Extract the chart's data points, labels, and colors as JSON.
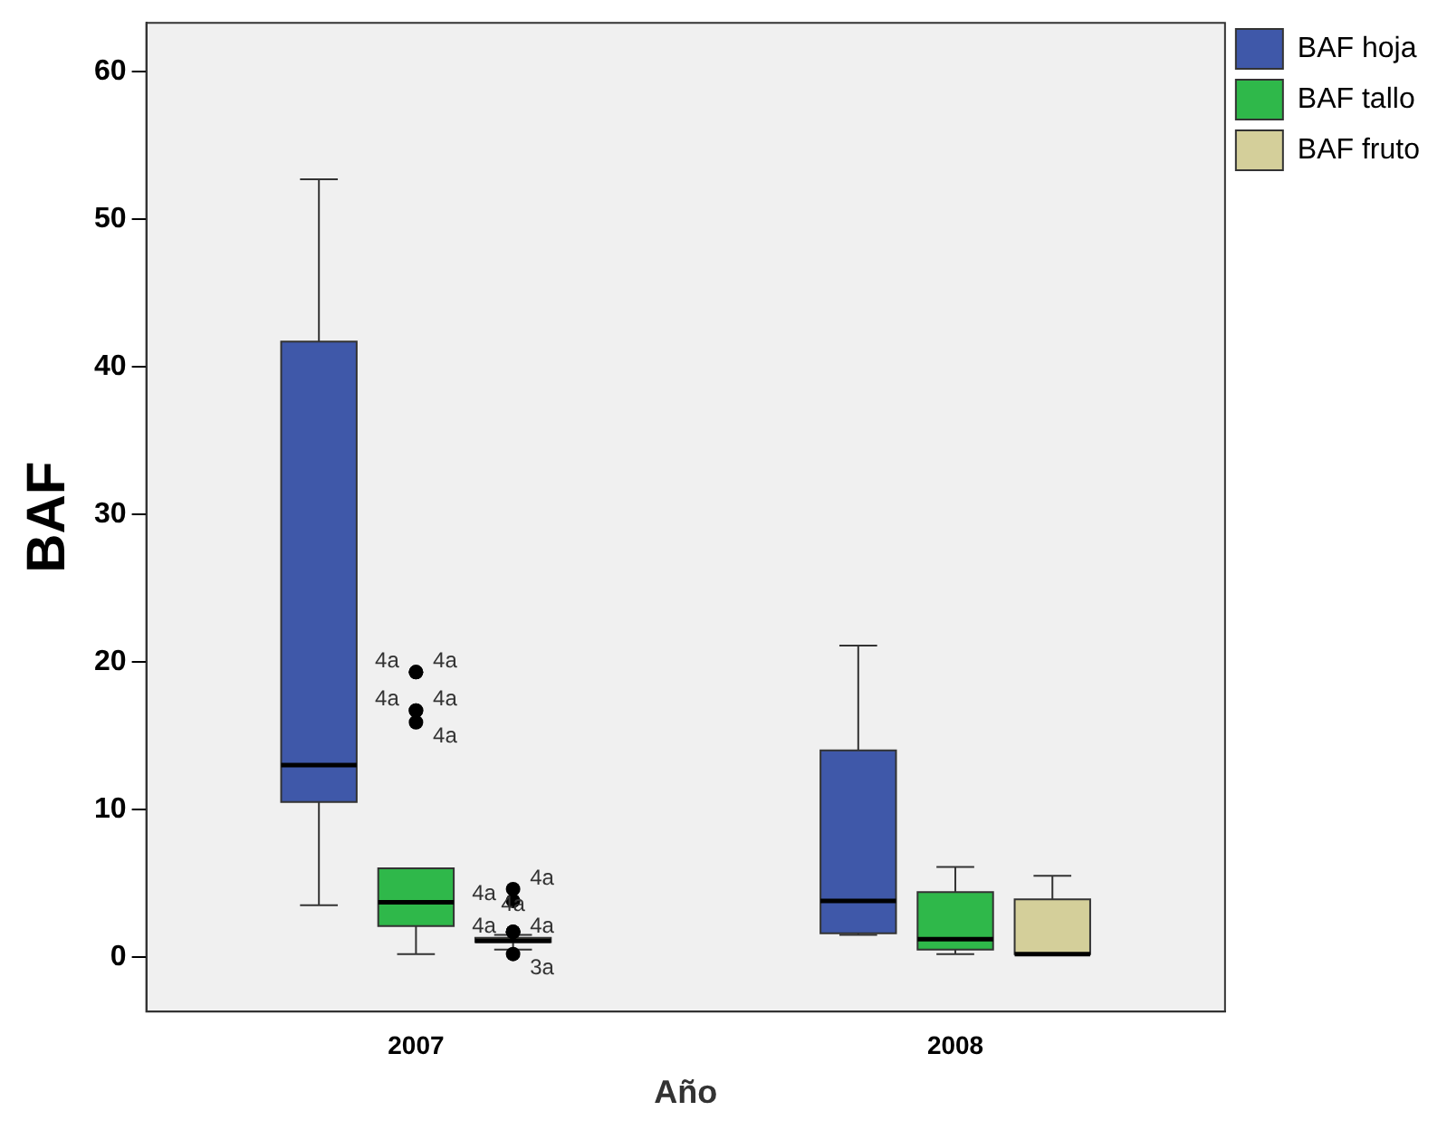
{
  "chart_data": {
    "type": "box",
    "xlabel": "Año",
    "ylabel": "BAF",
    "categories": [
      "2007",
      "2008"
    ],
    "ylim": [
      -3.7,
      63.3
    ],
    "yticks": [
      0,
      10,
      20,
      30,
      40,
      50,
      60
    ],
    "grid": false,
    "legend": "top right",
    "series": [
      {
        "name": "BAF hoja",
        "color": "#3f58a9",
        "boxes": [
          {
            "low": 3.5,
            "q1": 10.5,
            "median": 13.0,
            "q3": 41.7,
            "high": 52.7
          },
          {
            "low": 1.5,
            "q1": 1.6,
            "median": 3.8,
            "q3": 14.0,
            "high": 21.1
          }
        ]
      },
      {
        "name": "BAF tallo",
        "color": "#2fb84a",
        "boxes": [
          {
            "low": 0.2,
            "q1": 2.1,
            "median": 3.7,
            "q3": 6.0,
            "high": 6.0,
            "outliers": [
              19.3,
              19.3,
              16.7,
              16.7,
              15.9
            ]
          },
          {
            "low": 0.2,
            "q1": 0.5,
            "median": 1.2,
            "q3": 4.4,
            "high": 6.1
          }
        ]
      },
      {
        "name": "BAF fruto",
        "color": "#d4cf9a",
        "boxes": [
          {
            "low": 0.5,
            "q1": 1.0,
            "median": 1.1,
            "q3": 1.3,
            "high": 1.5,
            "outliers": [
              4.6,
              3.8,
              1.7,
              1.7,
              1.7,
              0.2
            ]
          },
          {
            "low": 0.2,
            "q1": 0.2,
            "median": 0.2,
            "q3": 3.9,
            "high": 5.5
          }
        ]
      }
    ],
    "annotations": [
      "4a",
      "4a",
      "4a",
      "4a",
      "4a",
      "4a",
      "4a",
      "4a",
      "4a",
      "4a",
      "3a"
    ]
  }
}
